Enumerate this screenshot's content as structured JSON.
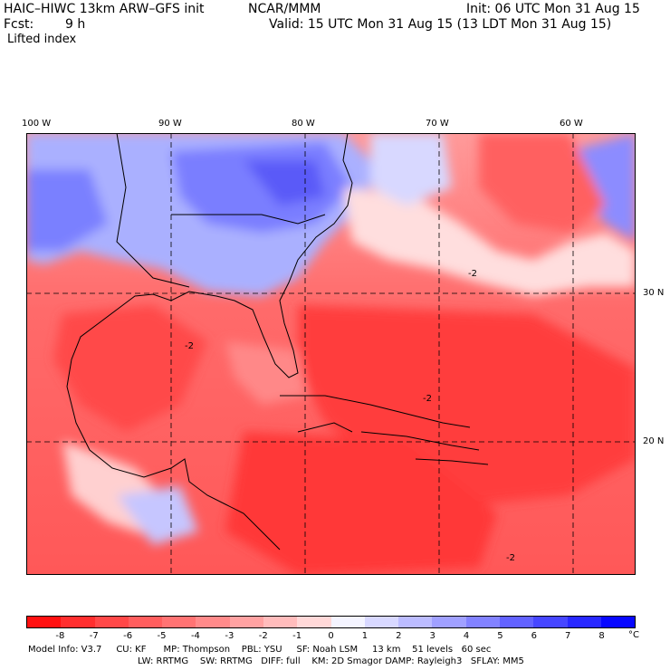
{
  "header": {
    "model_title": "HAIC–HIWC 13km ARW–GFS init",
    "org": "NCAR/MMM",
    "init": "Init: 06 UTC Mon 31 Aug 15",
    "fcst_label": "Fcst:",
    "fcst_value": "9 h",
    "valid": "Valid: 15 UTC Mon 31 Aug 15 (13 LDT Mon 31 Aug 15)",
    "field": "Lifted index"
  },
  "map": {
    "lon_labels": [
      "100 W",
      "90 W",
      "80 W",
      "70 W",
      "60 W"
    ],
    "lat_labels": [
      "30 N",
      "20 N"
    ],
    "contour_labels": [
      "-2",
      "-2",
      "-2",
      "-2"
    ]
  },
  "colorbar": {
    "ticks": [
      "-8",
      "-7",
      "-6",
      "-5",
      "-4",
      "-3",
      "-2",
      "-1",
      "0",
      "1",
      "2",
      "3",
      "4",
      "5",
      "6",
      "7",
      "8"
    ],
    "unit": "°C",
    "colors": [
      "#ff1010",
      "#ff2e2e",
      "#ff4848",
      "#ff5e5e",
      "#ff7373",
      "#ff8a8a",
      "#ffa2a2",
      "#ffbcbc",
      "#ffd8d8",
      "#f4f4ff",
      "#d8d8ff",
      "#bcbcff",
      "#a0a0ff",
      "#8282ff",
      "#6262ff",
      "#4646ff",
      "#2828ff",
      "#0808ff"
    ]
  },
  "footer": {
    "line1": "Model Info: V3.7     CU: KF      MP: Thompson    PBL: YSU     SF: Noah LSM     13 km    51 levels   60 sec",
    "line2": "LW: RRTMG    SW: RRTMG   DIFF: full    KM: 2D Smagor DAMP: Rayleigh3   SFLAY: MM5"
  }
}
